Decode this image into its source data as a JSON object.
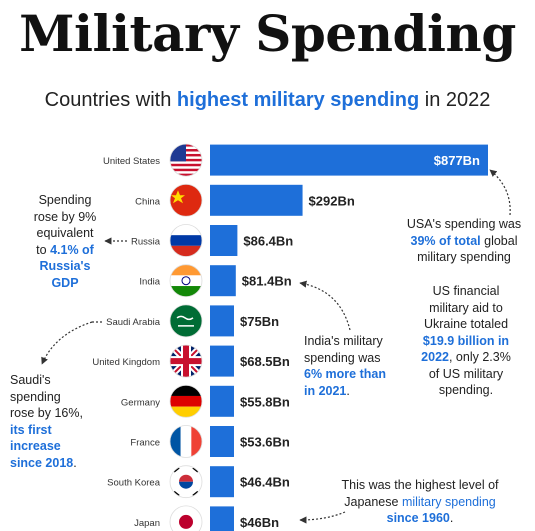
{
  "header": {
    "title": "Military Spending",
    "subtitle_pre": "Countries with ",
    "subtitle_highlight": "highest military spending",
    "subtitle_post": " in 2022"
  },
  "chart_data": {
    "type": "bar",
    "orientation": "horizontal",
    "unit": "$Bn",
    "bar_color": "#1e6fd9",
    "categories": [
      "United States",
      "China",
      "Russia",
      "India",
      "Saudi Arabia",
      "United Kingdom",
      "Germany",
      "France",
      "South Korea",
      "Japan"
    ],
    "values": [
      877,
      292,
      86.4,
      81.4,
      75,
      68.5,
      55.8,
      53.6,
      46.4,
      46
    ],
    "value_labels": [
      "$877Bn",
      "$292Bn",
      "$86.4Bn",
      "$81.4Bn",
      "$75Bn",
      "$68.5Bn",
      "$55.8Bn",
      "$53.6Bn",
      "$46.4Bn",
      "$46Bn"
    ],
    "flag_icons": [
      "usa-flag-icon",
      "china-flag-icon",
      "russia-flag-icon",
      "india-flag-icon",
      "saudi-arabia-flag-icon",
      "uk-flag-icon",
      "germany-flag-icon",
      "france-flag-icon",
      "south-korea-flag-icon",
      "japan-flag-icon"
    ]
  },
  "annotations": {
    "russia_gdp": {
      "line1": "Spending",
      "line2": "rose by 9%",
      "line3": "equivalent",
      "line4_pre": "to ",
      "line4_hl": "4.1% of",
      "line5_hl": "Russia's",
      "line6_hl": "GDP"
    },
    "usa_share": {
      "line1": "USA's spending was",
      "line2_hl": "39% of total",
      "line2_post": " global",
      "line3": "military spending"
    },
    "us_aid": {
      "line1": "US financial",
      "line2": "military aid to",
      "line3": "Ukraine totaled",
      "line4_hl": "$19.9 billion in",
      "line5_hl": "2022",
      "line5_post": ", only 2.3%",
      "line6": "of US military",
      "line7": "spending."
    },
    "india": {
      "line1": "India's military",
      "line2": "spending was",
      "line3_hl": "6% more than",
      "line4_hl": "in 2021",
      "line4_post": "."
    },
    "saudi": {
      "line1": "Saudi's",
      "line2": "spending",
      "line3": "rose by 16%,",
      "line4_hl": "its first",
      "line5_hl": "increase",
      "line6_hl": "since 2018",
      "line6_post": "."
    },
    "japan": {
      "line1": "This was the highest level of",
      "line2_pre": "Japanese ",
      "line2_hl": "military spending",
      "line3_hl": "since 1960",
      "line3_post": "."
    }
  }
}
